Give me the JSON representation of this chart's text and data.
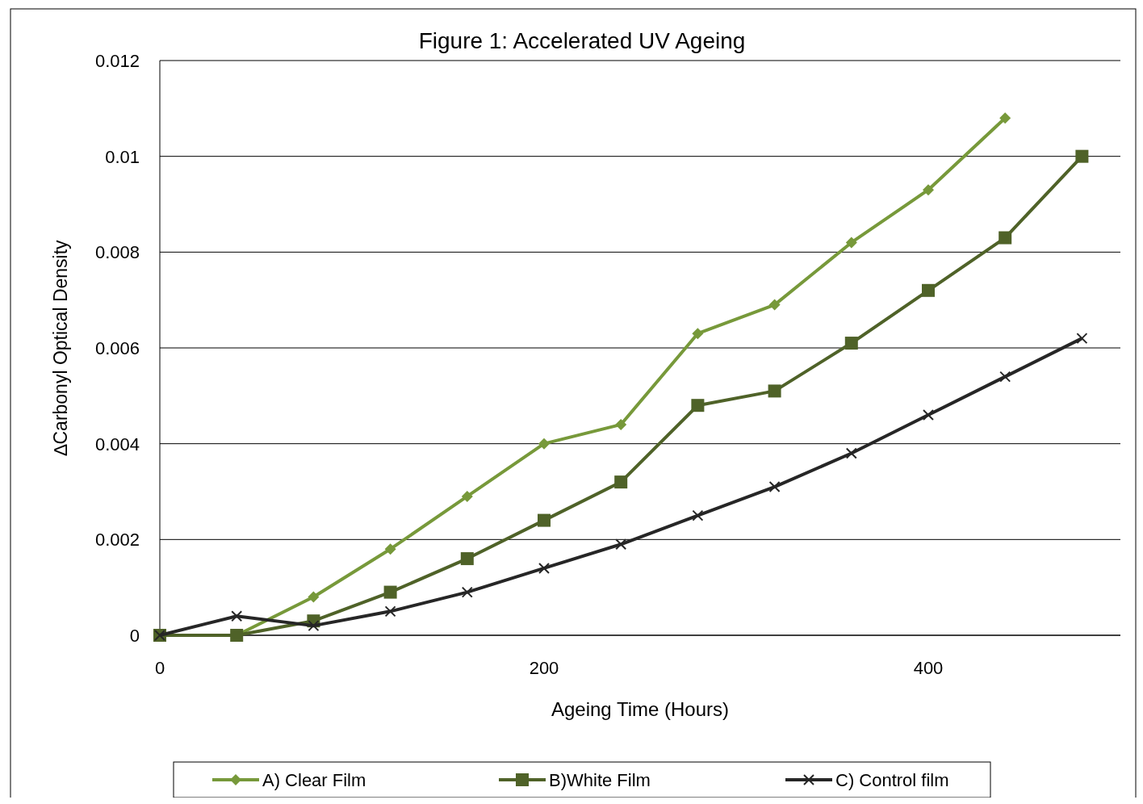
{
  "chart_data": {
    "type": "line",
    "title": "Figure 1: Accelerated UV Ageing",
    "xlabel": "Ageing Time (Hours)",
    "ylabel": "∆Carbonyl Optical Density",
    "x": [
      0,
      40,
      80,
      120,
      160,
      200,
      240,
      280,
      320,
      360,
      400,
      440,
      480
    ],
    "series": [
      {
        "name": "A) Clear Film",
        "color": "#77993a",
        "marker": "diamond",
        "x": [
          0,
          40,
          80,
          120,
          160,
          200,
          240,
          280,
          320,
          360,
          400,
          440
        ],
        "values": [
          0,
          0,
          0.0008,
          0.0018,
          0.0029,
          0.004,
          0.0044,
          0.0063,
          0.0069,
          0.0082,
          0.0093,
          0.0108
        ]
      },
      {
        "name": "B)White  Film",
        "color": "#4f6228",
        "marker": "square",
        "values": [
          0,
          0,
          0.0003,
          0.0009,
          0.0016,
          0.0024,
          0.0032,
          0.0048,
          0.0051,
          0.0061,
          0.0072,
          0.0083,
          0.01
        ]
      },
      {
        "name": "C) Control film",
        "color": "#262626",
        "marker": "cross",
        "values": [
          0,
          0.0004,
          0.0002,
          0.0005,
          0.0009,
          0.0014,
          0.0019,
          0.0025,
          0.0031,
          0.0038,
          0.0046,
          0.0054,
          0.0062
        ]
      }
    ],
    "xlim": [
      0,
      500
    ],
    "xticks": [
      0,
      200,
      400
    ],
    "ylim": [
      0,
      0.012
    ],
    "yticks": [
      0,
      0.002,
      0.004,
      0.006,
      0.008,
      0.01,
      0.012
    ],
    "grid": "y",
    "legend": "bottom",
    "line_style": "solid"
  }
}
